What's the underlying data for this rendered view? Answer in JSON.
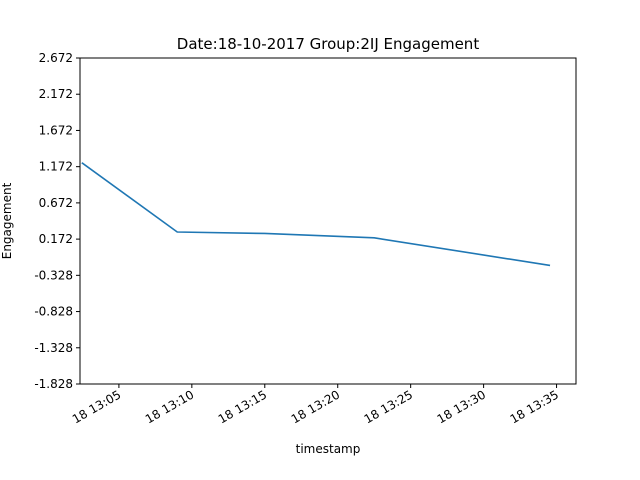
{
  "chart_data": {
    "type": "line",
    "title": "Date:18-10-2017 Group:2IJ Engagement",
    "xlabel": "timestamp",
    "ylabel": "Engagement",
    "ylim": [
      -1.828,
      2.672
    ],
    "yticks": [
      -1.828,
      -1.328,
      -0.828,
      -0.328,
      0.172,
      0.672,
      1.172,
      1.672,
      2.172,
      2.672
    ],
    "ytick_labels": [
      "-1.828",
      "-1.328",
      "-0.828",
      "-0.328",
      "0.172",
      "0.672",
      "1.172",
      "1.672",
      "2.172",
      "2.672"
    ],
    "xlim": [
      "2017-10-18 13:02:20",
      "2017-10-18 13:36:20"
    ],
    "xticks": [
      "2017-10-18 13:05",
      "2017-10-18 13:10",
      "2017-10-18 13:15",
      "2017-10-18 13:20",
      "2017-10-18 13:25",
      "2017-10-18 13:30",
      "2017-10-18 13:35"
    ],
    "xtick_labels": [
      "18 13:05",
      "18 13:10",
      "18 13:15",
      "18 13:20",
      "18 13:25",
      "18 13:30",
      "18 13:35"
    ],
    "series": [
      {
        "color": "#1f77b4",
        "x": [
          "2017-10-18 13:02:30",
          "2017-10-18 13:09:00",
          "2017-10-18 13:15:00",
          "2017-10-18 13:22:30",
          "2017-10-18 13:34:30"
        ],
        "y": [
          1.22,
          0.27,
          0.25,
          0.19,
          -0.19
        ]
      }
    ],
    "grid": false,
    "legend": "none"
  }
}
